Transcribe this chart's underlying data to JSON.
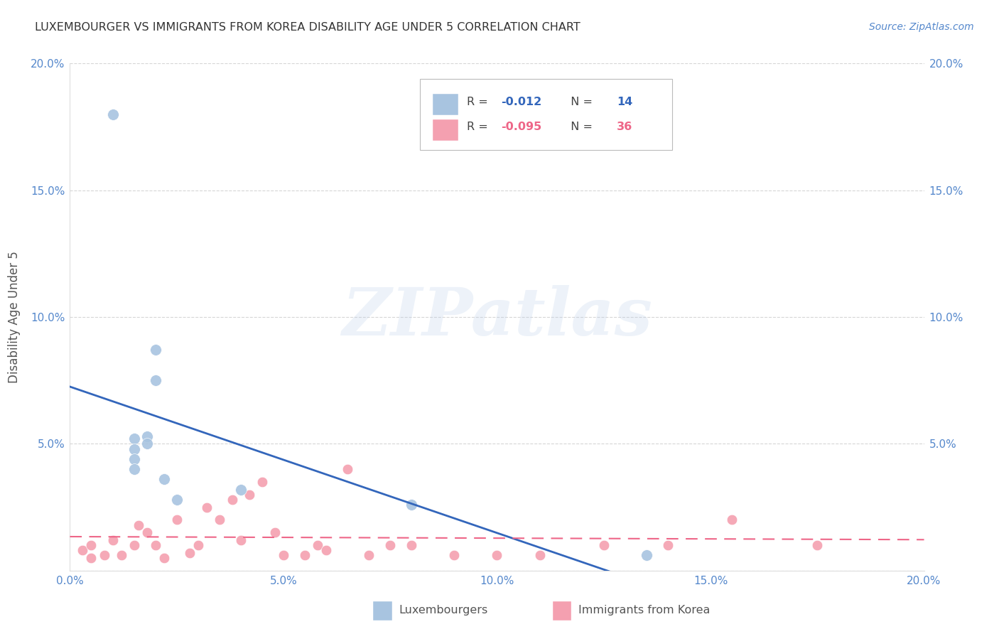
{
  "title": "LUXEMBOURGER VS IMMIGRANTS FROM KOREA DISABILITY AGE UNDER 5 CORRELATION CHART",
  "source": "Source: ZipAtlas.com",
  "ylabel": "Disability Age Under 5",
  "R1": "-0.012",
  "N1": "14",
  "R2": "-0.095",
  "N2": "36",
  "color1": "#a8c4e0",
  "color2": "#f4a0b0",
  "trendline1_color": "#3366bb",
  "trendline2_color": "#ee6688",
  "background_color": "#ffffff",
  "grid_color": "#cccccc",
  "axis_color": "#5588cc",
  "title_color": "#333333",
  "legend_label1": "Luxembourgers",
  "legend_label2": "Immigrants from Korea",
  "watermark_text": "ZIPatlas",
  "xlim": [
    0.0,
    0.2
  ],
  "ylim": [
    0.0,
    0.2
  ],
  "xticks": [
    0.0,
    0.05,
    0.1,
    0.15,
    0.2
  ],
  "yticks": [
    0.0,
    0.05,
    0.1,
    0.15,
    0.2
  ],
  "lux_x": [
    0.01,
    0.015,
    0.015,
    0.015,
    0.015,
    0.018,
    0.018,
    0.02,
    0.02,
    0.022,
    0.025,
    0.04,
    0.08,
    0.135
  ],
  "lux_y": [
    0.18,
    0.052,
    0.048,
    0.044,
    0.04,
    0.053,
    0.05,
    0.087,
    0.075,
    0.036,
    0.028,
    0.032,
    0.026,
    0.006
  ],
  "kor_x": [
    0.003,
    0.005,
    0.005,
    0.008,
    0.01,
    0.012,
    0.015,
    0.016,
    0.018,
    0.02,
    0.022,
    0.025,
    0.028,
    0.03,
    0.032,
    0.035,
    0.038,
    0.04,
    0.042,
    0.045,
    0.048,
    0.05,
    0.055,
    0.058,
    0.06,
    0.065,
    0.07,
    0.075,
    0.08,
    0.09,
    0.1,
    0.11,
    0.125,
    0.14,
    0.155,
    0.175
  ],
  "kor_y": [
    0.008,
    0.01,
    0.005,
    0.006,
    0.012,
    0.006,
    0.01,
    0.018,
    0.015,
    0.01,
    0.005,
    0.02,
    0.007,
    0.01,
    0.025,
    0.02,
    0.028,
    0.012,
    0.03,
    0.035,
    0.015,
    0.006,
    0.006,
    0.01,
    0.008,
    0.04,
    0.006,
    0.01,
    0.01,
    0.006,
    0.006,
    0.006,
    0.01,
    0.01,
    0.02,
    0.01
  ]
}
